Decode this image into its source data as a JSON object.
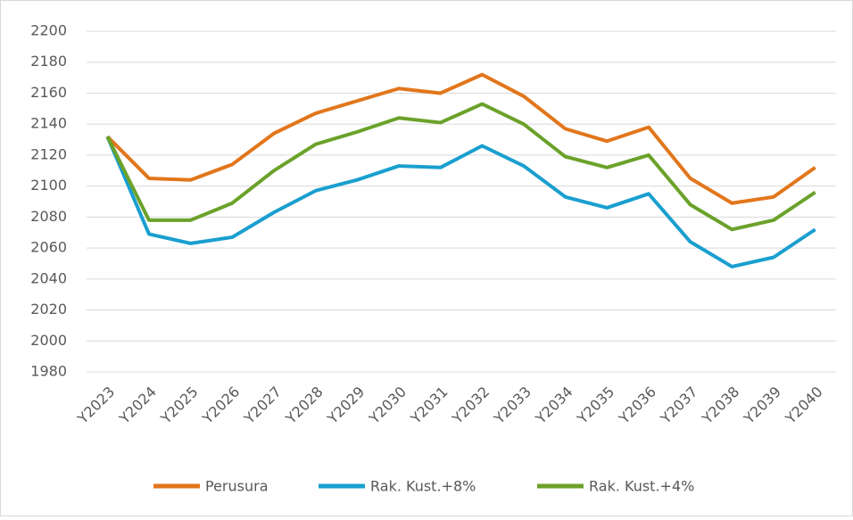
{
  "chart_data": {
    "type": "line",
    "categories": [
      "Y2023",
      "Y2024",
      "Y2025",
      "Y2026",
      "Y2027",
      "Y2028",
      "Y2029",
      "Y2030",
      "Y2031",
      "Y2032",
      "Y2033",
      "Y2034",
      "Y2035",
      "Y2036",
      "Y2037",
      "Y2038",
      "Y2039",
      "Y2040"
    ],
    "series": [
      {
        "name": "Perusura",
        "color": "#e2761b",
        "values": [
          2132,
          2105,
          2104,
          2114,
          2134,
          2147,
          2155,
          2163,
          2160,
          2172,
          2158,
          2137,
          2129,
          2138,
          2105,
          2089,
          2093,
          2112
        ]
      },
      {
        "name": "Rak. Kust.+8%",
        "color": "#1a9fcf",
        "values": [
          2132,
          2069,
          2063,
          2067,
          2083,
          2097,
          2104,
          2113,
          2112,
          2126,
          2113,
          2093,
          2086,
          2095,
          2064,
          2048,
          2054,
          2072
        ]
      },
      {
        "name": "Rak. Kust.+4%",
        "color": "#6ba22a",
        "values": [
          2132,
          2078,
          2078,
          2089,
          2110,
          2127,
          2135,
          2144,
          2141,
          2153,
          2140,
          2119,
          2112,
          2120,
          2088,
          2072,
          2078,
          2096
        ]
      }
    ],
    "ylim": [
      1980,
      2200
    ],
    "yticks": [
      1980,
      2000,
      2020,
      2040,
      2060,
      2080,
      2100,
      2120,
      2140,
      2160,
      2180,
      2200
    ],
    "grid": true,
    "legend": "bottom"
  }
}
